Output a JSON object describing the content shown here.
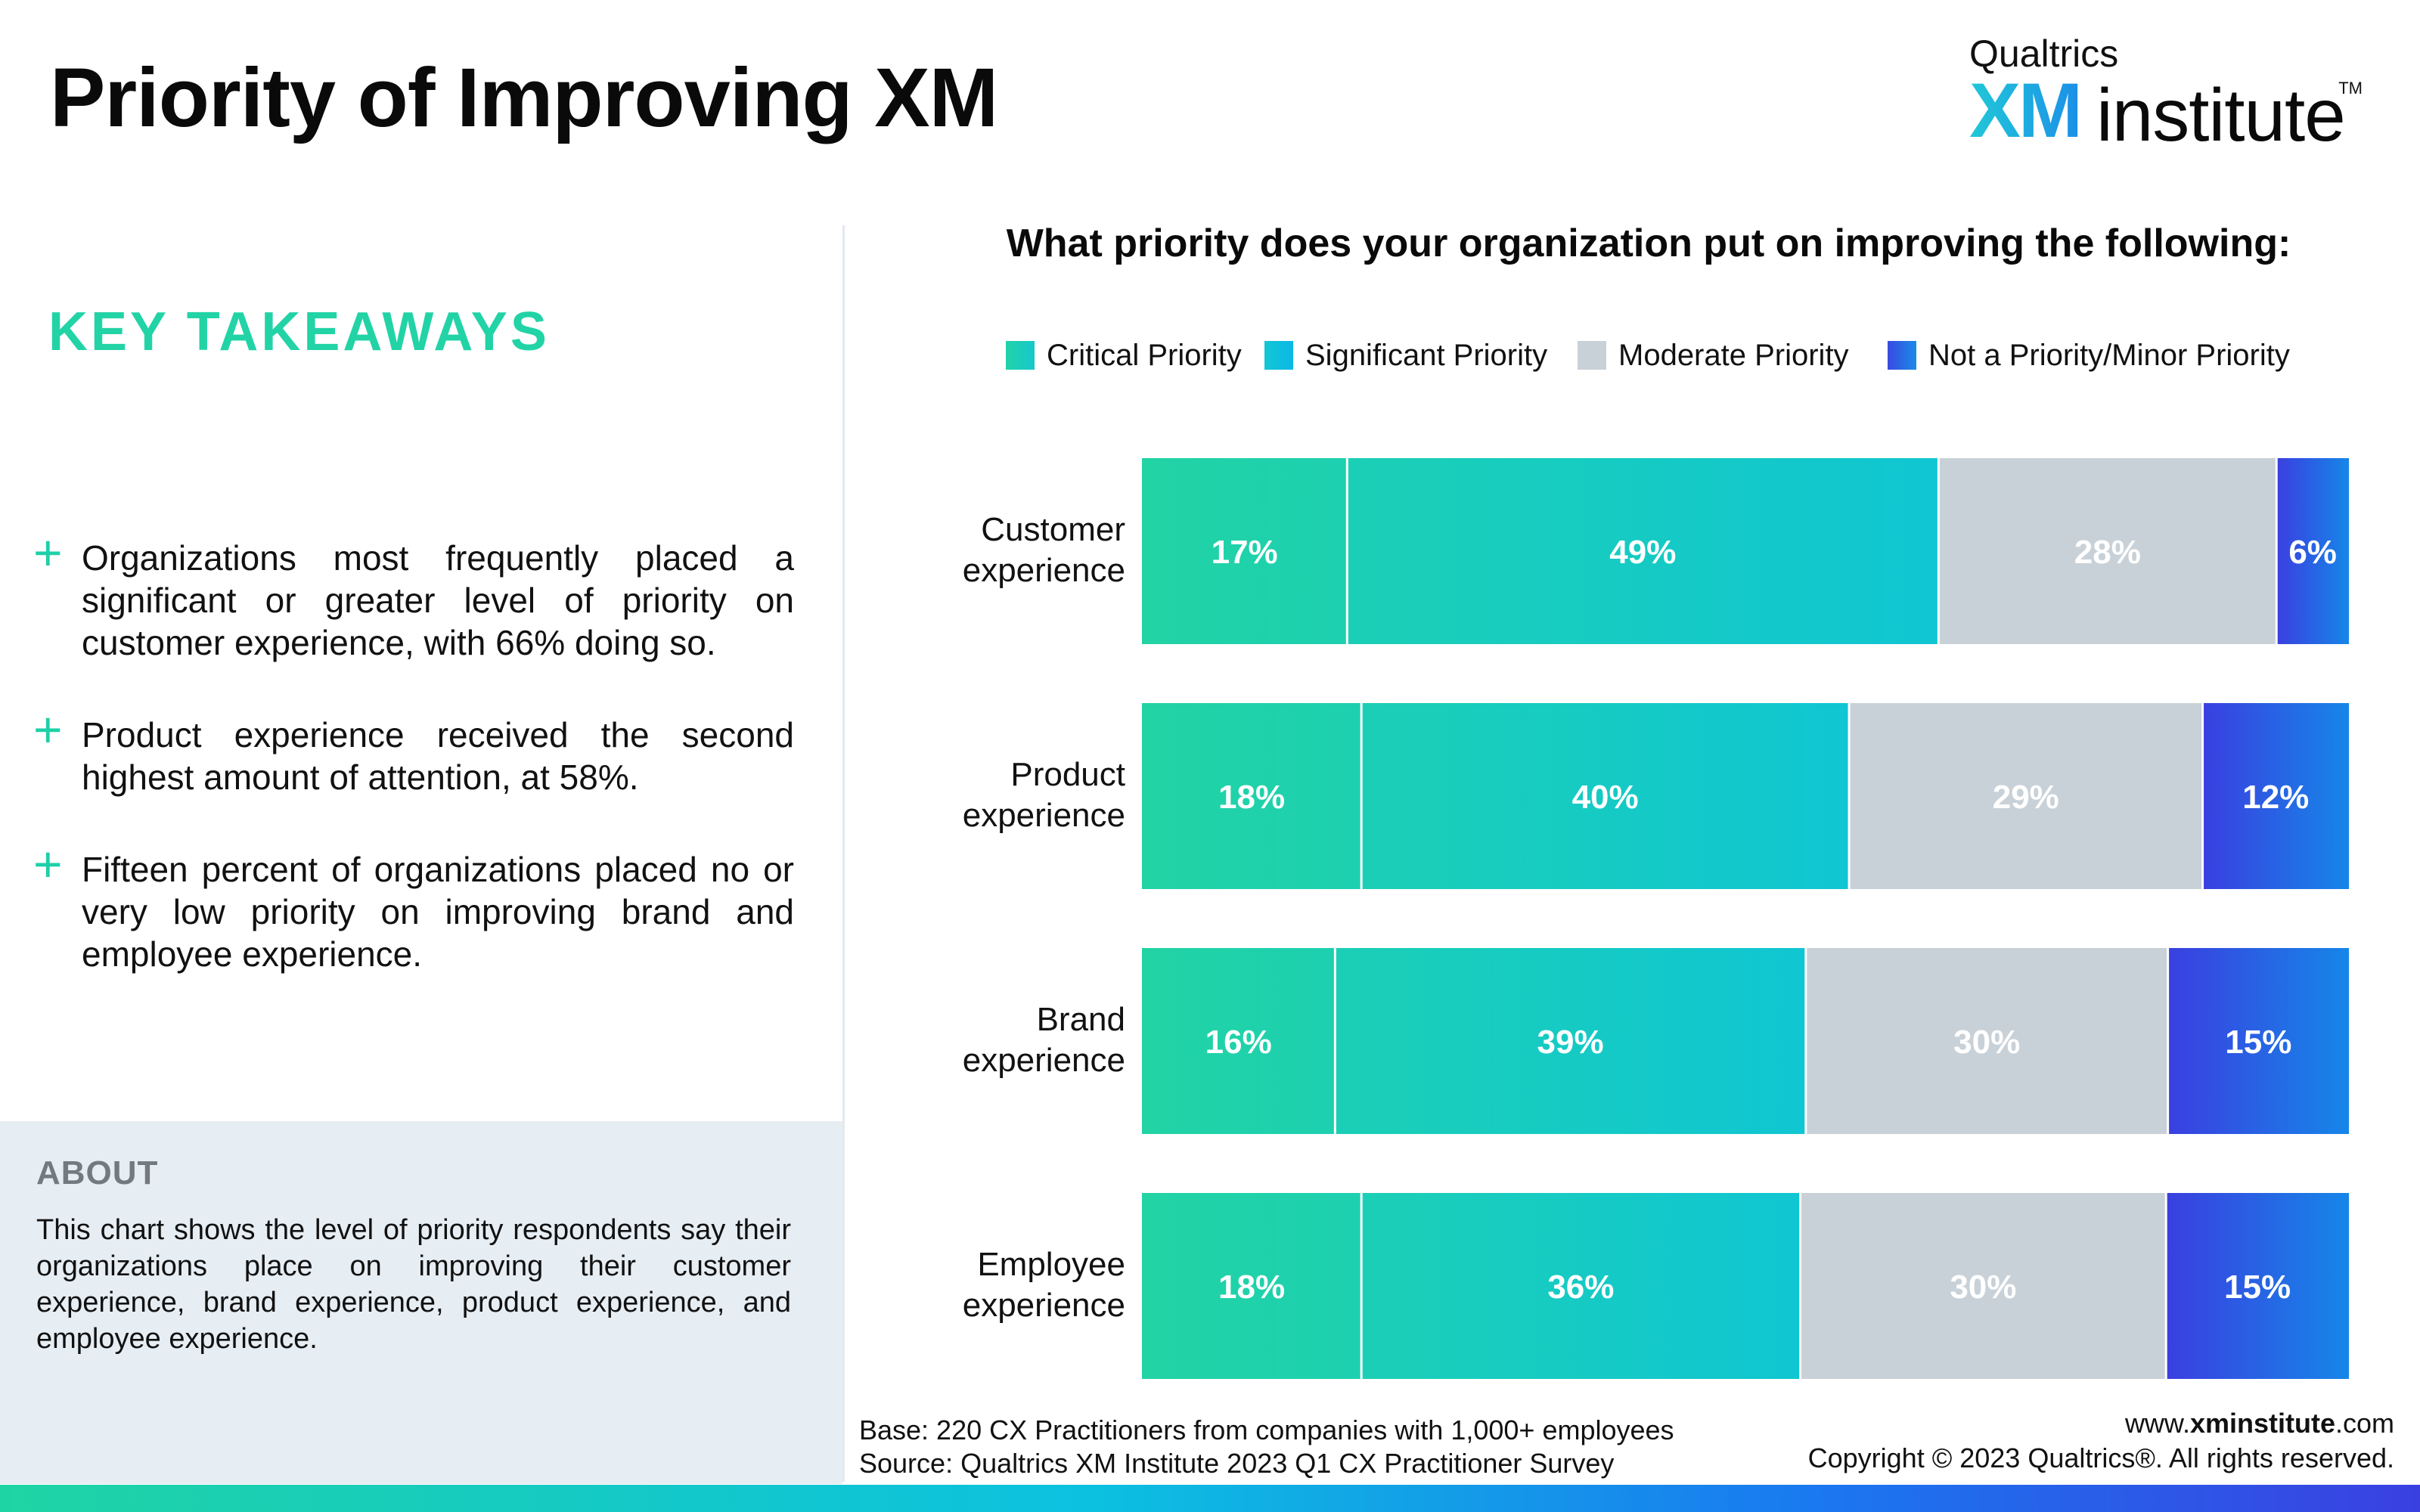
{
  "header": {
    "title": "Priority of Improving XM",
    "brand_top": "Qualtrics",
    "brand_xm": "XM",
    "brand_institute": "institute",
    "brand_tm": "TM"
  },
  "sidebar": {
    "key_takeaways_heading": "KEY TAKEAWAYS",
    "takeaways": [
      "Organizations most frequently placed a significant or greater level of priority on customer experience, with 66% doing so.",
      "Product experience received the second highest amount of attention, at 58%.",
      "Fifteen percent of organizations placed no or very low priority on improving brand and employee experience."
    ],
    "about_heading": "ABOUT",
    "about_text": "This chart shows the level of priority respondents say their organizations place on improving their customer experience, brand experience, product experience, and employee experience."
  },
  "footer": {
    "base": "Base: 220 CX Practitioners from companies with 1,000+ employees",
    "source": "Source: Qualtrics XM Institute 2023 Q1 CX Practitioner Survey",
    "url_prefix": "www.",
    "url_bold": "xminstitute",
    "url_suffix": ".com",
    "copyright": "Copyright © 2023 Qualtrics®. All rights reserved."
  },
  "colors": {
    "accent_green": "#22d3a6",
    "critical": "#21d3a8",
    "significant": "#16c8cc",
    "moderate": "#c9d1d8",
    "not_priority": "#2b5ae0"
  },
  "chart_data": {
    "type": "bar",
    "orientation": "horizontal",
    "stacked": true,
    "title": "What priority does your organization put on improving the following:",
    "categories": [
      [
        "Customer",
        "experience"
      ],
      [
        "Product",
        "experience"
      ],
      [
        "Brand",
        "experience"
      ],
      [
        "Employee",
        "experience"
      ]
    ],
    "series": [
      {
        "name": "Critical Priority",
        "values": [
          17,
          18,
          16,
          18
        ],
        "color": "#21d3a8"
      },
      {
        "name": "Significant Priority",
        "values": [
          49,
          40,
          39,
          36
        ],
        "color": "#16c8cc"
      },
      {
        "name": "Moderate Priority",
        "values": [
          28,
          29,
          30,
          30
        ],
        "color": "#c9d1d8"
      },
      {
        "name": "Not a Priority/Minor Priority",
        "values": [
          6,
          12,
          15,
          15
        ],
        "color": "#2b5ae0"
      }
    ],
    "value_suffix": "%",
    "legend_position": "top",
    "grid": false
  }
}
